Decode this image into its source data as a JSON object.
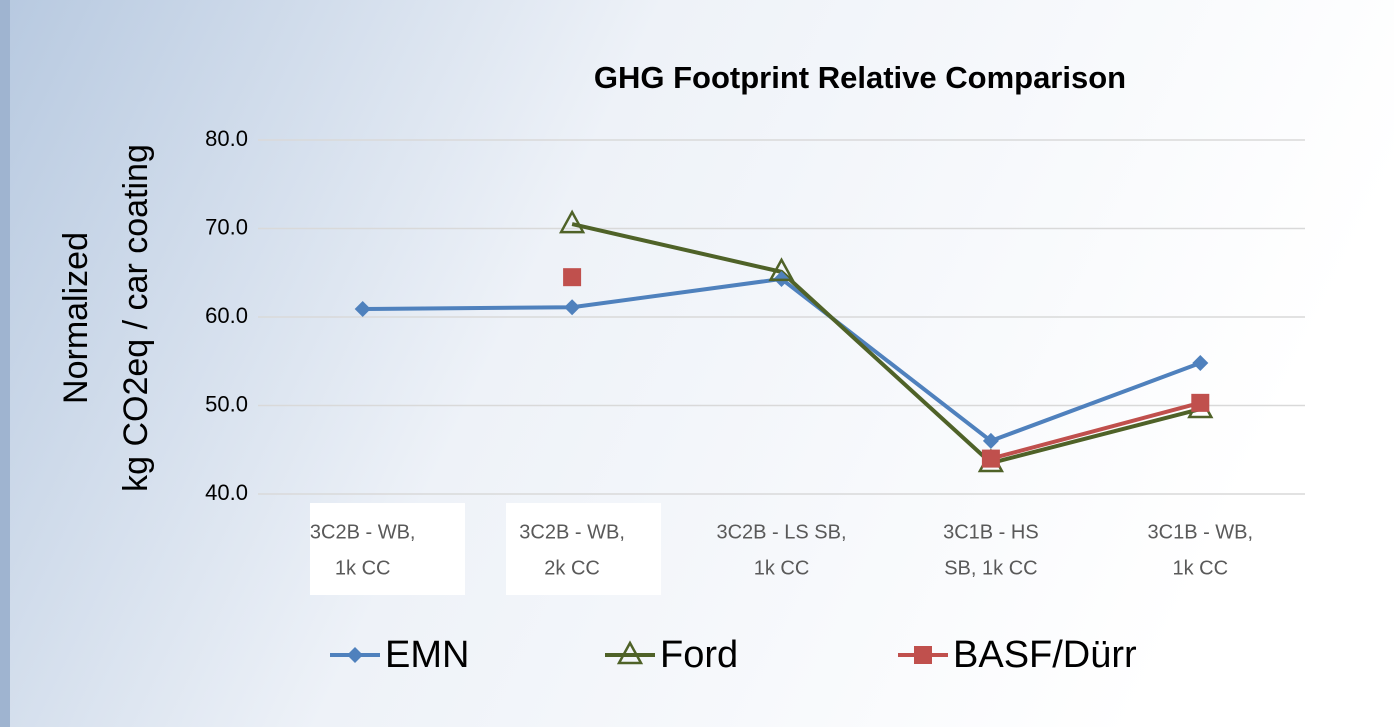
{
  "chart_data": {
    "type": "line",
    "title": "GHG Footprint Relative Comparison",
    "y_label": [
      "Normalized",
      "kg CO2eq / car coating"
    ],
    "categories": [
      [
        "3C2B - WB,",
        "1k CC"
      ],
      [
        "3C2B - WB,",
        "2k CC"
      ],
      [
        "3C2B - LS SB,",
        "1k CC"
      ],
      [
        "3C1B - HS",
        "SB, 1k CC"
      ],
      [
        "3C1B - WB,",
        "1k CC"
      ]
    ],
    "series": [
      {
        "name": "EMN",
        "color": "#4f81bd",
        "marker": "diamond",
        "values": [
          60.9,
          61.1,
          64.3,
          46.0,
          54.8
        ]
      },
      {
        "name": "Ford",
        "color": "#4f6228",
        "marker": "triangle",
        "values": [
          null,
          70.5,
          65.1,
          43.5,
          49.6
        ]
      },
      {
        "name": "BASF/Dürr",
        "color": "#c0504d",
        "marker": "square",
        "values": [
          null,
          64.5,
          null,
          44.0,
          50.3
        ]
      }
    ],
    "ylim": [
      40,
      80
    ],
    "yticks": [
      {
        "value": 40,
        "label": "40.0"
      },
      {
        "value": 50,
        "label": "50.0"
      },
      {
        "value": 60,
        "label": "60.0"
      },
      {
        "value": 70,
        "label": "70.0"
      },
      {
        "value": 80,
        "label": "80.0"
      }
    ],
    "grid": true,
    "legend": "bottom"
  }
}
